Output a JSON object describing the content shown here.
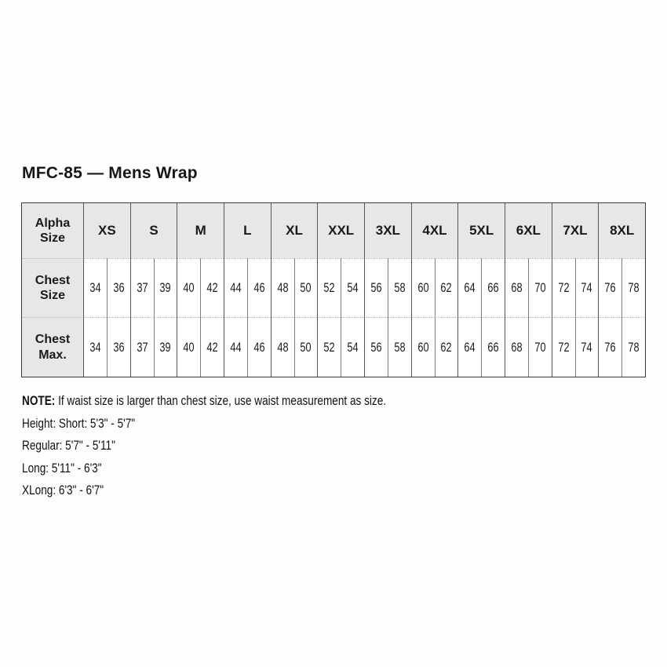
{
  "page": {
    "title": "MFC-85 — Mens Wrap"
  },
  "table": {
    "corner_header": "Alpha Size",
    "sizes": [
      "XS",
      "S",
      "M",
      "L",
      "XL",
      "XXL",
      "3XL",
      "4XL",
      "5XL",
      "6XL",
      "7XL",
      "8XL"
    ],
    "rows": [
      {
        "label": "Chest Size",
        "values": [
          34,
          36,
          37,
          39,
          40,
          42,
          44,
          46,
          48,
          50,
          52,
          54,
          56,
          58,
          60,
          62,
          64,
          66,
          68,
          70,
          72,
          74,
          76,
          78
        ]
      },
      {
        "label": "Chest Max.",
        "values": [
          34,
          36,
          37,
          39,
          40,
          42,
          44,
          46,
          48,
          50,
          52,
          54,
          56,
          58,
          60,
          62,
          64,
          66,
          68,
          70,
          72,
          74,
          76,
          78
        ]
      }
    ]
  },
  "notes": {
    "note_label": "NOTE:",
    "note_text": " If waist size is larger than chest size, use waist measurement as size.",
    "lines": [
      "Height: Short: 5'3\" - 5'7\"",
      "Regular: 5'7\" - 5'11\"",
      "Long: 5'11\" - 6'3\"",
      "XLong: 6'3\" - 6'7\""
    ]
  },
  "colors": {
    "header_fill": "#e7e7e7",
    "border_dark": "#3a3a3a",
    "border_minor": "#7d7d7d",
    "row_separator": "#b3b3b3",
    "text": "#1a1a1a",
    "background": "#fdfdfd"
  }
}
